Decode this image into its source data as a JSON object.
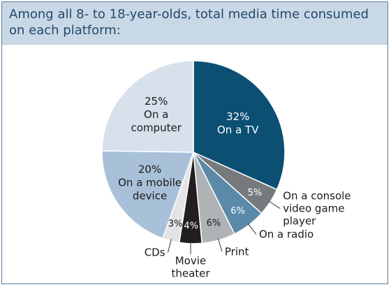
{
  "header": {
    "title": "Among all 8- to 18-year-olds, total media time consumed on each platform:"
  },
  "chart_data": {
    "type": "pie",
    "title": "Among all 8- to 18-year-olds, total media time consumed on each platform:",
    "unit": "%",
    "slices": [
      {
        "label": "On a TV",
        "value": 32,
        "value_label": "32%",
        "color": "#0b4f73",
        "text_color": "#ffffff",
        "label_inside": true
      },
      {
        "label": "On a console video game player",
        "value": 5,
        "value_label": "5%",
        "color": "#777a7d",
        "text_color": "#ffffff",
        "label_inside": false
      },
      {
        "label": "On a radio",
        "value": 6,
        "value_label": "6%",
        "color": "#5b89a8",
        "text_color": "#ffffff",
        "label_inside": false
      },
      {
        "label": "Print",
        "value": 6,
        "value_label": "6%",
        "color": "#b0b3b6",
        "text_color": "#1a1a1a",
        "label_inside": false
      },
      {
        "label": "Movie theater",
        "value": 4,
        "value_label": "4%",
        "color": "#231f20",
        "text_color": "#ffffff",
        "label_inside": false
      },
      {
        "label": "CDs",
        "value": 3,
        "value_label": "3%",
        "color": "#e3e4e5",
        "text_color": "#1a1a1a",
        "label_inside": false
      },
      {
        "label": "On a mobile device",
        "value": 20,
        "value_label": "20%",
        "color": "#a9c1d8",
        "text_color": "#1a1a1a",
        "label_inside": true
      },
      {
        "label": "On a computer",
        "value": 25,
        "value_label": "25%",
        "color": "#d6e1ec",
        "text_color": "#1a1a1a",
        "label_inside": true
      }
    ]
  }
}
